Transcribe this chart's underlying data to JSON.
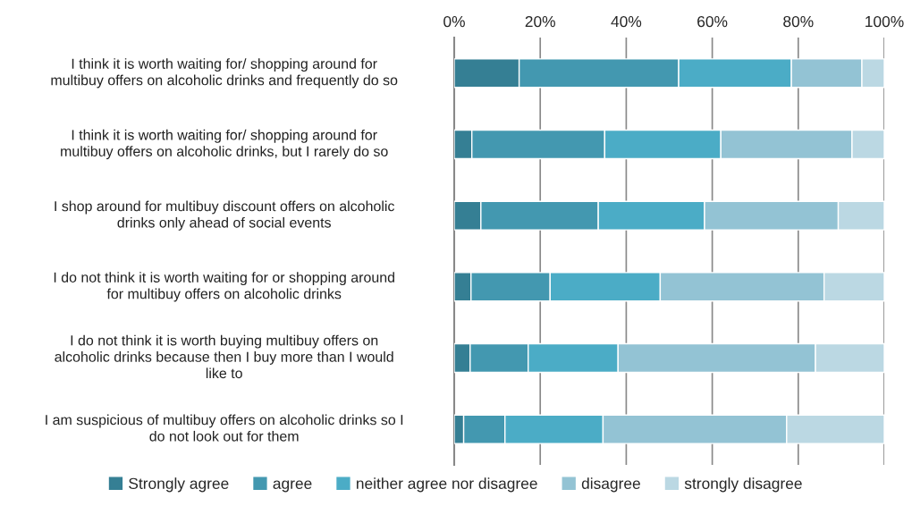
{
  "chart_data": {
    "type": "bar",
    "orientation": "horizontal",
    "stacked": true,
    "categories": [
      "I think it is worth waiting for/ shopping around for\nmultibuy offers on alcoholic drinks and frequently do so",
      "I think it is worth waiting for/ shopping around for\nmultibuy offers on alcoholic drinks, but I rarely do so",
      "I shop around for multibuy discount offers on alcoholic\ndrinks only ahead of social events",
      "I do not think it is worth waiting for or shopping around\nfor multibuy offers on alcoholic drinks",
      "I do not think it is worth buying multibuy offers on\nalcoholic drinks because then I buy more than I would\nlike to",
      "I am suspicious of multibuy offers on alcoholic drinks so I\ndo not look out for them"
    ],
    "series": [
      {
        "name": "Strongly agree",
        "color": "#357f94",
        "values": [
          15.1,
          4.1,
          6.2,
          3.9,
          3.7,
          2.2
        ]
      },
      {
        "name": "agree",
        "color": "#4398b0",
        "values": [
          37.1,
          30.9,
          27.3,
          18.4,
          13.5,
          9.6
        ]
      },
      {
        "name": "neither agree nor disagree",
        "color": "#4bacc6",
        "values": [
          26.2,
          27.0,
          24.7,
          25.6,
          20.9,
          22.8
        ]
      },
      {
        "name": "disagree",
        "color": "#93c3d4",
        "values": [
          16.4,
          30.5,
          31.1,
          38.1,
          45.9,
          42.7
        ]
      },
      {
        "name": "strongly disagree",
        "color": "#bbd8e3",
        "values": [
          5.2,
          7.5,
          10.7,
          14.0,
          16.0,
          22.7
        ]
      }
    ],
    "xlim": [
      0,
      100
    ],
    "xticks": [
      {
        "value": 0,
        "label": "0%"
      },
      {
        "value": 20,
        "label": "20%"
      },
      {
        "value": 40,
        "label": "40%"
      },
      {
        "value": 60,
        "label": "60%"
      },
      {
        "value": 80,
        "label": "80%"
      },
      {
        "value": 100,
        "label": "100%"
      }
    ],
    "grid": "x",
    "legend": "bottom"
  }
}
